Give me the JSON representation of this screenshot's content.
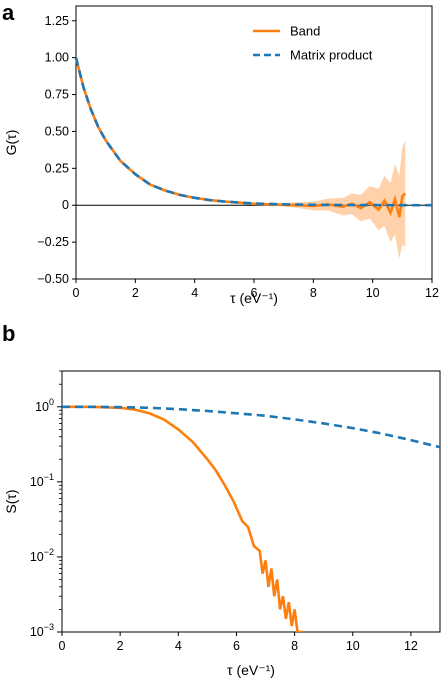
{
  "panels": [
    {
      "letter": "a",
      "chart_data": {
        "type": "line",
        "xlabel": "τ (eV⁻¹)",
        "ylabel": "G(τ)",
        "xlim": [
          0,
          12
        ],
        "ylim": [
          -0.5,
          1.35
        ],
        "xticks": [
          "0",
          "2",
          "4",
          "6",
          "8",
          "10",
          "12"
        ],
        "yticks": [
          "1.25",
          "1.00",
          "0.75",
          "0.50",
          "0.25",
          "0",
          "−0.25",
          "−0.50"
        ],
        "yscale": "linear",
        "zero_line": true,
        "legend_position": "top-right",
        "series": [
          {
            "name": "Band",
            "color": "#ff7f0e",
            "style": "solid",
            "x": [
              0,
              0.25,
              0.5,
              0.75,
              1,
              1.5,
              2,
              2.5,
              3,
              3.5,
              4,
              4.5,
              5,
              5.5,
              6,
              6.5,
              7,
              7.5,
              8,
              8.5,
              9,
              9.3,
              9.6,
              9.9,
              10.2,
              10.4,
              10.6,
              10.75,
              10.9,
              11.0,
              11.1
            ],
            "y": [
              1.0,
              0.8,
              0.65,
              0.53,
              0.44,
              0.3,
              0.21,
              0.14,
              0.1,
              0.07,
              0.05,
              0.035,
              0.025,
              0.018,
              0.01,
              0.006,
              0.003,
              0.0,
              -0.005,
              0.005,
              -0.01,
              0.01,
              -0.02,
              0.02,
              -0.03,
              0.03,
              -0.05,
              0.04,
              -0.08,
              0.06,
              0.08
            ],
            "band_halfwidth": [
              0,
              0,
              0,
              0,
              0,
              0,
              0,
              0,
              0,
              0,
              0,
              0,
              0,
              0,
              0.005,
              0.008,
              0.012,
              0.02,
              0.03,
              0.04,
              0.06,
              0.07,
              0.09,
              0.11,
              0.14,
              0.17,
              0.2,
              0.24,
              0.28,
              0.33,
              0.36
            ]
          },
          {
            "name": "Matrix product",
            "color": "#1f77b4",
            "style": "dashed",
            "x": [
              0,
              0.25,
              0.5,
              0.75,
              1,
              1.5,
              2,
              2.5,
              3,
              3.5,
              4,
              4.5,
              5,
              5.5,
              6,
              7,
              8,
              9,
              10,
              11,
              12
            ],
            "y": [
              1.0,
              0.8,
              0.65,
              0.53,
              0.44,
              0.3,
              0.21,
              0.14,
              0.1,
              0.07,
              0.05,
              0.035,
              0.025,
              0.018,
              0.012,
              0.006,
              0.003,
              0.0015,
              0.0008,
              0.0004,
              0.0002
            ]
          }
        ]
      }
    },
    {
      "letter": "b",
      "chart_data": {
        "type": "line",
        "xlabel": "τ (eV⁻¹)",
        "ylabel": "S(τ)",
        "xlim": [
          0,
          13
        ],
        "ylim": [
          0.001,
          3
        ],
        "yscale": "log",
        "xticks": [
          "0",
          "2",
          "4",
          "6",
          "8",
          "10",
          "12"
        ],
        "ytick_values": [
          1,
          0.1,
          0.01,
          0.001
        ],
        "yticks": [
          {
            "base": "10",
            "exp": "0"
          },
          {
            "base": "10",
            "exp": "−1"
          },
          {
            "base": "10",
            "exp": "−2"
          },
          {
            "base": "10",
            "exp": "−3"
          }
        ],
        "series": [
          {
            "name": "",
            "color": "#ff7f0e",
            "style": "solid",
            "x": [
              0,
              1,
              2,
              2.5,
              3,
              3.5,
              4,
              4.5,
              5,
              5.3,
              5.6,
              5.9,
              6.2,
              6.4,
              6.6,
              6.8,
              6.9,
              7.0,
              7.1,
              7.2,
              7.3,
              7.4,
              7.5,
              7.6,
              7.7,
              7.8,
              7.9,
              8.0,
              8.1,
              8.3
            ],
            "y": [
              1.0,
              1.0,
              0.97,
              0.92,
              0.82,
              0.68,
              0.5,
              0.34,
              0.2,
              0.14,
              0.09,
              0.055,
              0.03,
              0.025,
              0.014,
              0.012,
              0.006,
              0.009,
              0.004,
              0.007,
              0.003,
              0.005,
              0.002,
              0.003,
              0.0015,
              0.0025,
              0.0012,
              0.002,
              0.001,
              0.001
            ]
          },
          {
            "name": "",
            "color": "#1f77b4",
            "style": "dashed",
            "x": [
              0,
              1,
              2,
              3,
              4,
              5,
              6,
              7,
              8,
              9,
              10,
              11,
              12,
              13
            ],
            "y": [
              1.0,
              1.0,
              0.99,
              0.97,
              0.93,
              0.88,
              0.82,
              0.76,
              0.68,
              0.6,
              0.52,
              0.44,
              0.36,
              0.29
            ]
          }
        ]
      }
    }
  ]
}
